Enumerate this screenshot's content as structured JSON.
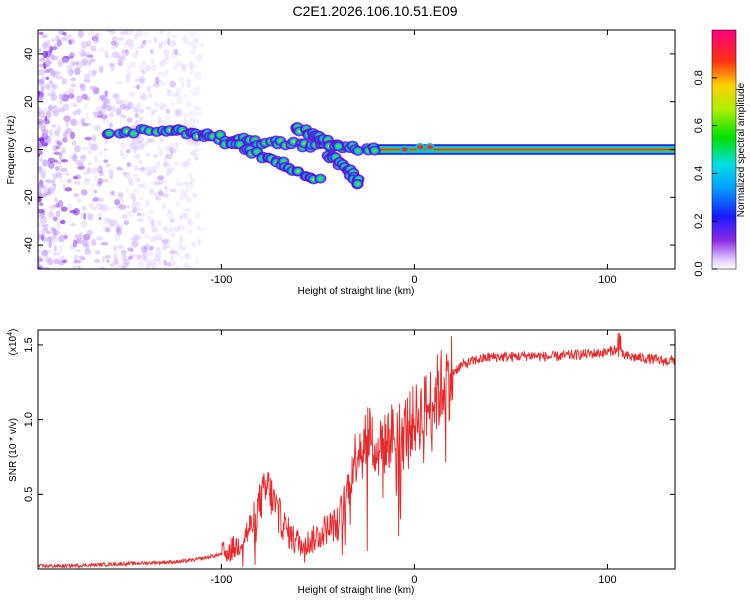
{
  "title": "C2E1.2026.106.10.51.E09",
  "colors": {
    "snr_line": "#e8282a",
    "ridge_core": "#ff2a1a",
    "background": "#ffffff",
    "frame": "#000000"
  },
  "chart_data": [
    {
      "type": "heatmap",
      "title": "C2E1.2026.106.10.51.E09",
      "xlabel": "Height of straight line (km)",
      "ylabel": "Frequency (Hz)",
      "xlim": [
        -195,
        135
      ],
      "ylim": [
        -50,
        50
      ],
      "xticks": [
        -100,
        0,
        100
      ],
      "xtick_labels": [
        "-100",
        "0",
        "100"
      ],
      "yticks": [
        -40,
        -20,
        0,
        20,
        40
      ],
      "ytick_labels": [
        "-40",
        "-20",
        "0",
        "20",
        "40"
      ],
      "colorbar": {
        "label": "Normalized spectral amplitude",
        "range": [
          0,
          1
        ],
        "ticks": [
          0.0,
          0.2,
          0.4,
          0.6,
          0.8
        ],
        "tick_labels": [
          "0.0",
          "0.2",
          "0.4",
          "0.6",
          "0.8"
        ]
      },
      "ridges": [
        {
          "name": "main",
          "points": [
            [
              -160,
              7
            ],
            [
              -130,
              8
            ],
            [
              -115,
              7
            ],
            [
              -100,
              5
            ],
            [
              -80,
              3
            ],
            [
              -60,
              2
            ],
            [
              -40,
              1
            ],
            [
              -20,
              0
            ],
            [
              0,
              0
            ],
            [
              135,
              0
            ]
          ]
        },
        {
          "name": "lower-branch",
          "points": [
            [
              -98,
              3
            ],
            [
              -80,
              -2
            ],
            [
              -65,
              -7
            ],
            [
              -50,
              -13
            ]
          ]
        },
        {
          "name": "upper-branch",
          "points": [
            [
              -62,
              9
            ],
            [
              -50,
              5
            ],
            [
              -40,
              1
            ]
          ]
        },
        {
          "name": "minor-branch",
          "points": [
            [
              -45,
              -2
            ],
            [
              -35,
              -8
            ],
            [
              -28,
              -15
            ]
          ]
        }
      ],
      "scatter_region_km": [
        -195,
        -110
      ]
    },
    {
      "type": "line",
      "xlabel": "Height of straight line (km)",
      "ylabel": "SNR (10 * v/v)",
      "y_scale_label": "(x10",
      "y_scale_exp": "4",
      "xlim": [
        -195,
        135
      ],
      "ylim": [
        0,
        1.6
      ],
      "xticks": [
        -100,
        0,
        100
      ],
      "xtick_labels": [
        "-100",
        "0",
        "100"
      ],
      "yticks": [
        0.5,
        1.0,
        1.5
      ],
      "ytick_labels": [
        "0.5",
        "1.0",
        "1.5"
      ],
      "series": [
        {
          "name": "SNR",
          "x": [
            -195,
            -180,
            -160,
            -140,
            -120,
            -110,
            -100,
            -92,
            -88,
            -84,
            -80,
            -76,
            -72,
            -68,
            -64,
            -60,
            -56,
            -52,
            -48,
            -44,
            -40,
            -36,
            -32,
            -28,
            -24,
            -20,
            -16,
            -12,
            -8,
            -4,
            0,
            4,
            8,
            12,
            16,
            20,
            24,
            28,
            32,
            36,
            40,
            50,
            60,
            70,
            80,
            90,
            100,
            104,
            108,
            112,
            120,
            130,
            135
          ],
          "values": [
            0.02,
            0.02,
            0.03,
            0.04,
            0.05,
            0.07,
            0.1,
            0.15,
            0.22,
            0.3,
            0.45,
            0.55,
            0.42,
            0.3,
            0.22,
            0.18,
            0.17,
            0.2,
            0.25,
            0.28,
            0.3,
            0.45,
            0.7,
            0.85,
            0.95,
            0.78,
            0.82,
            0.9,
            0.92,
            0.95,
            1.0,
            1.05,
            1.1,
            1.18,
            1.25,
            1.32,
            1.36,
            1.38,
            1.4,
            1.41,
            1.42,
            1.42,
            1.43,
            1.42,
            1.43,
            1.44,
            1.45,
            1.47,
            1.43,
            1.42,
            1.41,
            1.39,
            1.4
          ]
        }
      ]
    }
  ]
}
